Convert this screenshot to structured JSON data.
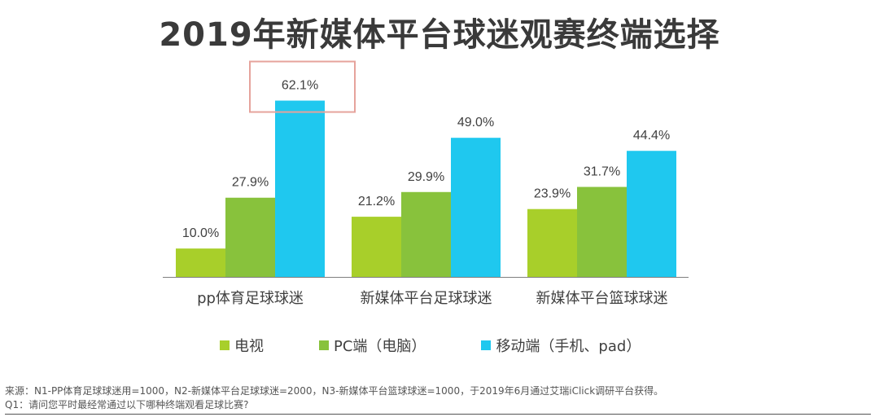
{
  "chart_data": {
    "type": "bar",
    "title": "2019年新媒体平台球迷观赛终端选择",
    "categories": [
      "pp体育足球球迷",
      "新媒体平台足球球迷",
      "新媒体平台篮球球迷"
    ],
    "series": [
      {
        "name": "电视",
        "color": "#a8cf2a",
        "values": [
          10.0,
          21.2,
          23.9
        ],
        "labels": [
          "10.0%",
          "21.2%",
          "23.9%"
        ]
      },
      {
        "name": "PC端（电脑）",
        "color": "#88c23c",
        "values": [
          27.9,
          29.9,
          31.7
        ],
        "labels": [
          "27.9%",
          "29.9%",
          "31.7%"
        ]
      },
      {
        "name": "移动端（手机、pad）",
        "color": "#1fc8ef",
        "values": [
          62.1,
          49.0,
          44.4
        ],
        "labels": [
          "62.1%",
          "49.0%",
          "44.4%"
        ]
      }
    ],
    "highlight": {
      "category_index": 0,
      "series_index": 2,
      "color": "#e6a39c"
    },
    "ylim": [
      0,
      70
    ],
    "grid": false,
    "legend": "bottom",
    "axis_color": "#7f7f7f",
    "label_color": "#404040"
  },
  "footnote": {
    "source": "来源：N1-PP体育足球球迷用=1000，N2-新媒体平台足球球迷=2000，N3-新媒体平台篮球球迷=1000，于2019年6月通过艾瑞iClick调研平台获得。",
    "question": "Q1：请问您平时最经常通过以下哪种终端观看足球比赛?"
  }
}
